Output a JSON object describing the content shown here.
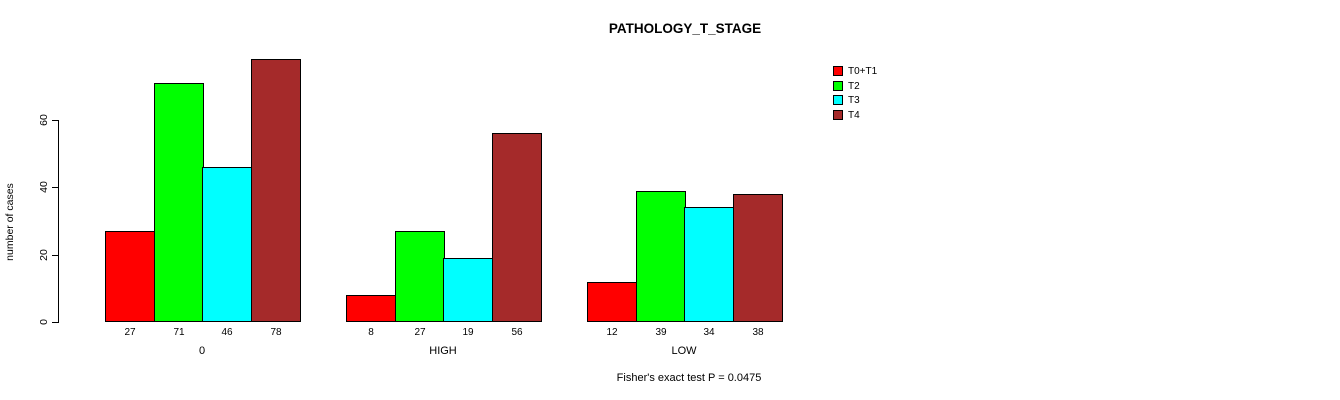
{
  "title": "PATHOLOGY_T_STAGE",
  "ylabel": "number of cases",
  "note": "Fisher's exact test P = 0.0475",
  "chart_data": {
    "type": "bar",
    "title": "PATHOLOGY_T_STAGE",
    "xlabel": "",
    "ylabel": "number of cases",
    "categories": [
      "0",
      "HIGH",
      "LOW"
    ],
    "series": [
      {
        "name": "T0+T1",
        "color": "#ff0000",
        "values": [
          27,
          8,
          12
        ]
      },
      {
        "name": "T2",
        "color": "#00ff00",
        "values": [
          71,
          27,
          39
        ]
      },
      {
        "name": "T3",
        "color": "#00ffff",
        "values": [
          46,
          19,
          34
        ]
      },
      {
        "name": "T4",
        "color": "#a52a2a",
        "values": [
          78,
          56,
          38
        ]
      }
    ],
    "bar_value_labels": {
      "0": [
        27,
        71,
        46,
        78
      ],
      "HIGH": [
        8,
        27,
        19,
        56
      ],
      "LOW": [
        12,
        39,
        34,
        38
      ]
    },
    "yticks": [
      0,
      20,
      40,
      60
    ],
    "ylim": [
      0,
      80
    ],
    "grid": false,
    "legend_position": "top-right",
    "annotation": "Fisher's exact test P = 0.0475"
  }
}
